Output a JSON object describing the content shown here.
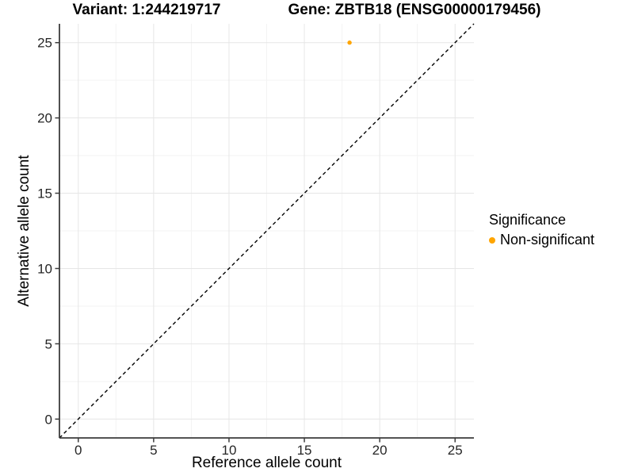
{
  "titles": {
    "variant": "Variant: 1:244219717",
    "gene": "Gene: ZBTB18 (ENSG00000179456)"
  },
  "chart_data": {
    "type": "scatter",
    "points": [
      {
        "x": 18,
        "y": 25,
        "series": "Non-significant"
      }
    ],
    "xlabel": "Reference allele count",
    "ylabel": "Alternative allele count",
    "x_ticks": [
      0,
      5,
      10,
      15,
      20,
      25
    ],
    "y_ticks": [
      0,
      5,
      10,
      15,
      20,
      25
    ],
    "x_minor_ticks": [
      2.5,
      7.5,
      12.5,
      17.5,
      22.5
    ],
    "y_minor_ticks": [
      2.5,
      7.5,
      12.5,
      17.5,
      22.5
    ],
    "xlim": [
      -1.25,
      26.25
    ],
    "ylim": [
      -1.25,
      26.25
    ],
    "grid": "major+minor",
    "identity_line": {
      "style": "dashed",
      "equation": "y = x"
    },
    "legend": {
      "title": "Significance",
      "position": "right",
      "items": [
        {
          "label": "Non-significant",
          "color": "#FFA500"
        }
      ]
    },
    "colors": {
      "point": "#FFA500",
      "grid_major": "#E6E6E6",
      "grid_minor": "#F3F3F3",
      "axis_line": "#3C3C3C",
      "tick_text": "#262626",
      "diagonal": "#000000",
      "background": "#FFFFFF"
    }
  }
}
